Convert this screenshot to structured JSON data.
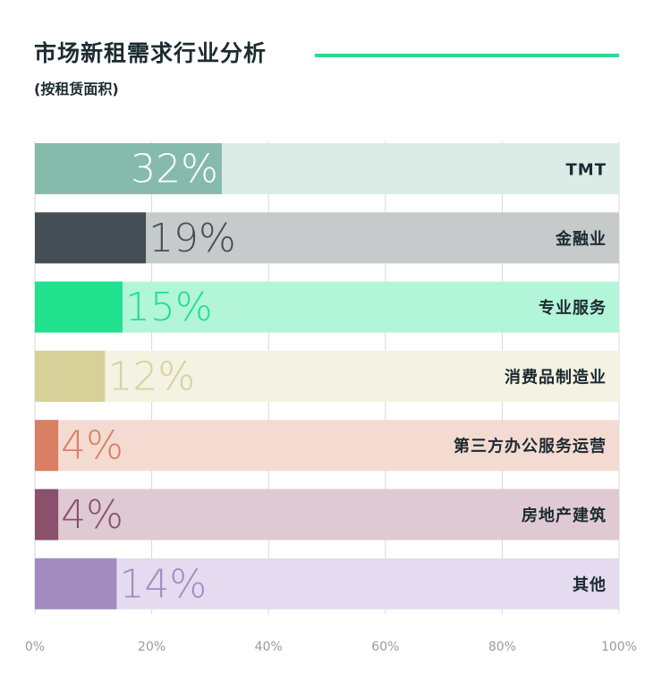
{
  "title": "市场新租需求行业分析",
  "subtitle": "(按租赁面积)",
  "colors": {
    "accent": "#2ddc93",
    "title": "#1c2b31",
    "grid": "#d9d9d9",
    "tick": "#9a9a9a"
  },
  "chart_data": {
    "type": "bar",
    "orientation": "horizontal",
    "title": "市场新租需求行业分析",
    "subtitle": "(按租赁面积)",
    "xlabel": "",
    "ylabel": "",
    "xlim": [
      0,
      100
    ],
    "grid": true,
    "ticks": [
      "0%",
      "20%",
      "40%",
      "60%",
      "80%",
      "100%"
    ],
    "tick_values": [
      0,
      20,
      40,
      60,
      80,
      100
    ],
    "categories": [
      "TMT",
      "金融业",
      "专业服务",
      "消费品制造业",
      "第三方办公服务运营",
      "房地产建筑",
      "其他"
    ],
    "values": [
      32,
      19,
      15,
      12,
      4,
      4,
      14
    ],
    "value_labels": [
      "32%",
      "19%",
      "15%",
      "12%",
      "4%",
      "4%",
      "14%"
    ],
    "bar_colors": [
      "#86bbac",
      "#434f55",
      "#1fe18e",
      "#d6d199",
      "#d87f64",
      "#8a506c",
      "#a48bc0"
    ],
    "track_colors": [
      "#dbebe6",
      "#c6cacb",
      "#b3f5d8",
      "#f4f2e2",
      "#f4dbd2",
      "#dfcad4",
      "#e4dbf0"
    ],
    "label_colors": [
      "#ffffff",
      "#434f55",
      "#1fe18e",
      "#d6d199",
      "#d87f64",
      "#8a506c",
      "#a48bc0"
    ]
  }
}
